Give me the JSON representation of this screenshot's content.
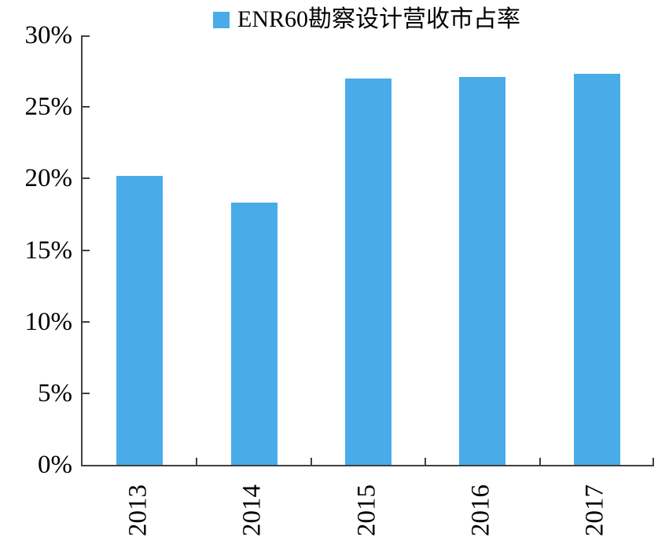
{
  "chart_data": {
    "type": "bar",
    "title": "ENR60勘察设计营收市占率",
    "legend_position": "top",
    "legend": [
      {
        "label": "ENR60勘察设计营收市占率",
        "color": "#49ACE9"
      }
    ],
    "categories": [
      "2013",
      "2014",
      "2015",
      "2016",
      "2017"
    ],
    "values": [
      20.2,
      18.3,
      27.0,
      27.1,
      27.3
    ],
    "value_unit": "%",
    "xlabel": "",
    "ylabel": "",
    "ylim": [
      0,
      30
    ],
    "ytick_step": 5,
    "ytick_labels": [
      "0%",
      "5%",
      "10%",
      "15%",
      "20%",
      "25%",
      "30%"
    ],
    "grid": false,
    "colors": {
      "bar": "#49ACE9",
      "axis": "#404040",
      "text": "#000000",
      "background": "#FFFFFF"
    }
  }
}
